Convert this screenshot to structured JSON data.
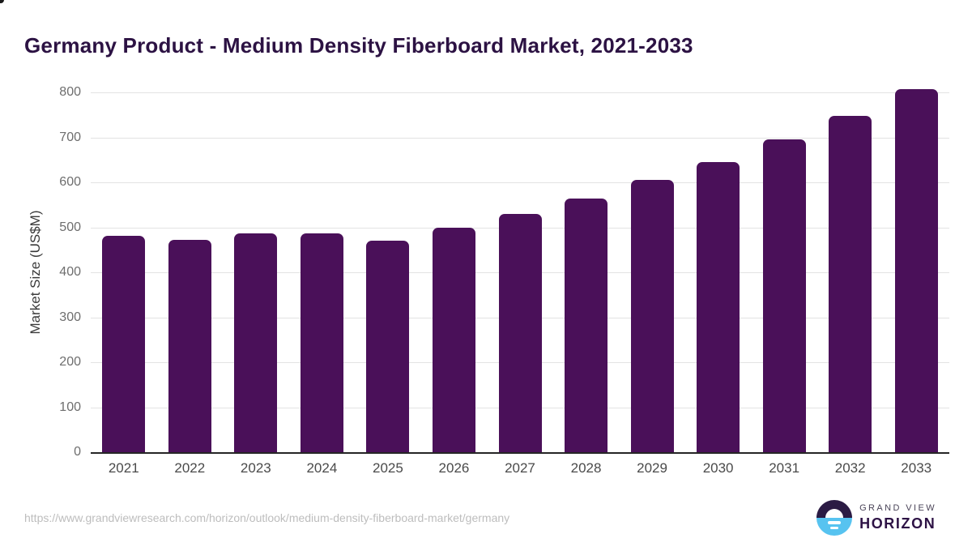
{
  "title": "Germany Product - Medium Density Fiberboard Market, 2021-2033",
  "chart_data": {
    "type": "bar",
    "title": "Germany Product - Medium Density Fiberboard Market, 2021-2033",
    "categories": [
      "2021",
      "2022",
      "2023",
      "2024",
      "2025",
      "2026",
      "2027",
      "2028",
      "2029",
      "2030",
      "2031",
      "2032",
      "2033"
    ],
    "values": [
      481,
      472,
      487,
      486,
      471,
      500,
      530,
      564,
      605,
      645,
      695,
      748,
      808
    ],
    "xlabel": "",
    "ylabel": "Market Size (US$M)",
    "ylim": [
      0,
      800
    ],
    "yticks": [
      0,
      100,
      200,
      300,
      400,
      500,
      600,
      700,
      800
    ],
    "grid": "horizontal",
    "legend": "none",
    "bar_color": "#4a1059"
  },
  "footer": {
    "source_url": "https://www.grandviewresearch.com/horizon/outlook/medium-density-fiberboard-market/germany",
    "logo": {
      "line1": "GRAND VIEW",
      "line2": "HORIZON",
      "icon_top_color": "#2b1b44",
      "icon_bottom_color": "#57c3f0"
    }
  },
  "colors": {
    "title": "#2c1243",
    "bar": "#4a1059",
    "gridline": "#e3e3e3",
    "axis_line": "#262626",
    "tick_label": "#6e6e6e",
    "x_label": "#4a4a4a",
    "url_text": "#bdbdbd"
  }
}
